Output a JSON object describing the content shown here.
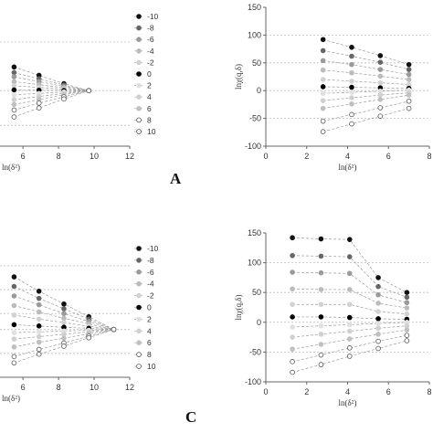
{
  "figure": {
    "panel_labels": [
      "A",
      "C"
    ]
  },
  "chart_data": [
    {
      "id": "top-left",
      "type": "line",
      "xlabel": "ln(δ²)",
      "ylabel": "",
      "xlim": [
        4.4,
        12
      ],
      "ylim": [
        -40,
        60
      ],
      "xticks": [
        "6",
        "8",
        "10",
        "12"
      ],
      "yticks": [],
      "grid_lines_y": [
        35,
        0,
        -25
      ],
      "legend": {
        "placement": "right",
        "labels": [
          "-10",
          "-8",
          "-6",
          "-4",
          "-2",
          "0",
          "2",
          "4",
          "6",
          "8",
          "10"
        ]
      },
      "x": [
        5.5,
        6.9,
        8.3,
        9.7
      ],
      "series": [
        {
          "name": "-10",
          "values": [
            17,
            11,
            5,
            0
          ]
        },
        {
          "name": "-8",
          "values": [
            13,
            8.5,
            4,
            0
          ]
        },
        {
          "name": "-6",
          "values": [
            10,
            6.5,
            3,
            0
          ]
        },
        {
          "name": "-4",
          "values": [
            6.5,
            4.3,
            2,
            0
          ]
        },
        {
          "name": "-2",
          "values": [
            3.5,
            2.3,
            1,
            0
          ]
        },
        {
          "name": "0",
          "values": [
            0.5,
            0.3,
            0.1,
            0
          ]
        },
        {
          "name": "2",
          "values": [
            -3,
            -2,
            -1,
            0
          ]
        },
        {
          "name": "4",
          "values": [
            -6.5,
            -4.3,
            -2,
            0
          ]
        },
        {
          "name": "6",
          "values": [
            -10,
            -6.5,
            -3,
            0
          ]
        },
        {
          "name": "8",
          "values": [
            -14,
            -9,
            -4.5,
            0
          ]
        },
        {
          "name": "10",
          "values": [
            -19,
            -12.5,
            -6,
            0
          ]
        }
      ]
    },
    {
      "id": "top-right",
      "type": "line",
      "xlabel": "ln(δ²)",
      "ylabel": "lnχ(q,δ)",
      "xlim": [
        0,
        8
      ],
      "ylim": [
        -100,
        150
      ],
      "xticks": [
        "0",
        "2",
        "4",
        "6",
        "8"
      ],
      "yticks": [
        "150",
        "100",
        "50",
        "0",
        "-50",
        "-100"
      ],
      "grid_lines_y": [
        100,
        50,
        0,
        -50
      ],
      "x": [
        2.8,
        4.2,
        5.6,
        7.0
      ],
      "series": [
        {
          "name": "-10",
          "values": [
            92,
            78,
            63,
            47
          ]
        },
        {
          "name": "-8",
          "values": [
            72,
            62,
            51,
            38
          ]
        },
        {
          "name": "-6",
          "values": [
            54,
            47,
            38,
            29
          ]
        },
        {
          "name": "-4",
          "values": [
            37,
            32,
            26,
            20
          ]
        },
        {
          "name": "-2",
          "values": [
            20,
            17,
            14,
            11
          ]
        },
        {
          "name": "0",
          "values": [
            7,
            6,
            5,
            4
          ]
        },
        {
          "name": "2",
          "values": [
            -5,
            -3,
            -1,
            1
          ]
        },
        {
          "name": "4",
          "values": [
            -18,
            -13,
            -8,
            -4
          ]
        },
        {
          "name": "6",
          "values": [
            -32,
            -24,
            -16,
            -8
          ]
        },
        {
          "name": "8",
          "values": [
            -55,
            -43,
            -31,
            -19
          ]
        },
        {
          "name": "10",
          "values": [
            -74,
            -60,
            -46,
            -32
          ]
        }
      ]
    },
    {
      "id": "bottom-left",
      "type": "line",
      "xlabel": "ln(δ²)",
      "ylabel": "",
      "xlim": [
        4.4,
        12
      ],
      "ylim": [
        -30,
        60
      ],
      "xticks": [
        "6",
        "8",
        "10",
        "12"
      ],
      "yticks": [],
      "grid_lines_y": [
        40,
        25,
        10,
        0,
        -15
      ],
      "legend": {
        "placement": "right",
        "labels": [
          "-10",
          "-8",
          "-6",
          "-4",
          "-2",
          "0",
          "2",
          "4",
          "6",
          "8",
          "10"
        ]
      },
      "x": [
        5.5,
        6.9,
        8.3,
        9.7,
        11.1
      ],
      "series": [
        {
          "name": "-10",
          "values": [
            33,
            24,
            16,
            8,
            0
          ]
        },
        {
          "name": "-8",
          "values": [
            27,
            19.5,
            13,
            6.5,
            0
          ]
        },
        {
          "name": "-6",
          "values": [
            21,
            15.5,
            10,
            5,
            0
          ]
        },
        {
          "name": "-4",
          "values": [
            15,
            11,
            7,
            3.5,
            0
          ]
        },
        {
          "name": "-2",
          "values": [
            9,
            6.5,
            4.3,
            2,
            0
          ]
        },
        {
          "name": "0",
          "values": [
            3,
            2.2,
            1.4,
            0.7,
            0
          ]
        },
        {
          "name": "2",
          "values": [
            -2,
            -1.5,
            -1,
            -0.5,
            0
          ]
        },
        {
          "name": "4",
          "values": [
            -6,
            -4.5,
            -3,
            -1.5,
            0
          ]
        },
        {
          "name": "6",
          "values": [
            -11,
            -8,
            -5.5,
            -2.7,
            0
          ]
        },
        {
          "name": "8",
          "values": [
            -17,
            -12.5,
            -8.5,
            -4.2,
            0
          ]
        },
        {
          "name": "10",
          "values": [
            -21,
            -15.5,
            -10.5,
            -5.2,
            0
          ]
        }
      ]
    },
    {
      "id": "bottom-right",
      "type": "line",
      "xlabel": "ln(δ²)",
      "ylabel": "lnχ(q,δ)",
      "xlim": [
        0,
        8
      ],
      "ylim": [
        -100,
        150
      ],
      "xticks": [
        "0",
        "2",
        "4",
        "6",
        "8"
      ],
      "yticks": [
        "150",
        "100",
        "50",
        "0",
        "-50",
        "-100"
      ],
      "grid_lines_y": [
        100,
        50,
        0,
        -50
      ],
      "x": [
        1.3,
        2.7,
        4.1,
        5.5,
        6.9
      ],
      "series": [
        {
          "name": "-10",
          "values": [
            142,
            140,
            139,
            75,
            50
          ]
        },
        {
          "name": "-8",
          "values": [
            112,
            111,
            110,
            60,
            42
          ]
        },
        {
          "name": "-6",
          "values": [
            84,
            83,
            82,
            46,
            33
          ]
        },
        {
          "name": "-4",
          "values": [
            56,
            55,
            55,
            32,
            24
          ]
        },
        {
          "name": "-2",
          "values": [
            30,
            30,
            30,
            18,
            14
          ]
        },
        {
          "name": "0",
          "values": [
            9,
            9,
            8,
            6,
            5
          ]
        },
        {
          "name": "2",
          "values": [
            -8,
            -6,
            -4,
            -2,
            0
          ]
        },
        {
          "name": "4",
          "values": [
            -25,
            -20,
            -15,
            -10,
            -6
          ]
        },
        {
          "name": "6",
          "values": [
            -45,
            -37,
            -28,
            -20,
            -13
          ]
        },
        {
          "name": "8",
          "values": [
            -66,
            -55,
            -43,
            -32,
            -22
          ]
        },
        {
          "name": "10",
          "values": [
            -84,
            -71,
            -57,
            -44,
            -31
          ]
        }
      ]
    }
  ],
  "style": {
    "grid_color": "#bdbdbd",
    "axis_color": "#666666",
    "marker_colors": [
      "#111111",
      "#666666",
      "#9a9a9a",
      "#bbbbbb",
      "#d2d2d2",
      "#000000",
      "#e0e0e0",
      "#d0d0d0",
      "#c0c0c0",
      "#a8a8a8",
      "#8a8a8a"
    ],
    "marker_filled": [
      true,
      true,
      true,
      true,
      true,
      true,
      true,
      true,
      true,
      false,
      false
    ]
  }
}
